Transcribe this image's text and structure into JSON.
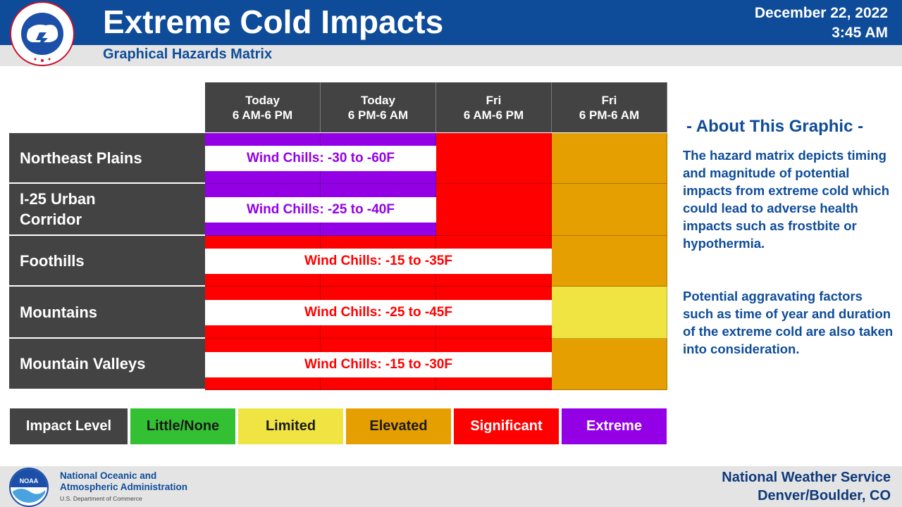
{
  "header": {
    "title": "Extreme Cold Impacts",
    "subtitle": "Graphical Hazards Matrix",
    "date": "December 22, 2022",
    "time": "3:45 AM",
    "nws_seal_text": "NATIONAL WEATHER SERVICE"
  },
  "columns": [
    {
      "line1": "Today",
      "line2": "6 AM-6 PM"
    },
    {
      "line1": "Today",
      "line2": "6 PM-6 AM"
    },
    {
      "line1": "Fri",
      "line2": "6 AM-6 PM"
    },
    {
      "line1": "Fri",
      "line2": "6 PM-6 AM"
    }
  ],
  "rows": [
    {
      "name_line1": "Northeast Plains",
      "name_line2": "",
      "levels": [
        "Extreme",
        "Extreme",
        "Significant",
        "Elevated"
      ],
      "band_text": "Wind Chills: -30 to -60F",
      "band_color": "#9400e6"
    },
    {
      "name_line1": "I-25 Urban",
      "name_line2": "Corridor",
      "levels": [
        "Extreme",
        "Extreme",
        "Significant",
        "Elevated"
      ],
      "band_text": "Wind Chills: -25 to -40F",
      "band_color": "#9400e6"
    },
    {
      "name_line1": "Foothills",
      "name_line2": "",
      "levels": [
        "Significant",
        "Significant",
        "Significant",
        "Elevated"
      ],
      "band_text": "Wind Chills: -15 to -35F",
      "band_color": "#ff0000"
    },
    {
      "name_line1": "Mountains",
      "name_line2": "",
      "levels": [
        "Significant",
        "Significant",
        "Significant",
        "Limited"
      ],
      "band_text": "Wind Chills: -25 to -45F",
      "band_color": "#ff0000"
    },
    {
      "name_line1": "Mountain Valleys",
      "name_line2": "",
      "levels": [
        "Significant",
        "Significant",
        "Significant",
        "Elevated"
      ],
      "band_text": "Wind Chills: -15 to -30F",
      "band_color": "#ff0000"
    }
  ],
  "legend": {
    "label": "Impact Level",
    "items": [
      {
        "name": "Little/None",
        "color": "#33c033",
        "text_color": "#1a1a1a"
      },
      {
        "name": "Limited",
        "color": "#f0e442",
        "text_color": "#1a1a1a"
      },
      {
        "name": "Elevated",
        "color": "#e69f00",
        "text_color": "#1a1a1a"
      },
      {
        "name": "Significant",
        "color": "#ff0000",
        "text_color": "#ffffff"
      },
      {
        "name": "Extreme",
        "color": "#9400e6",
        "text_color": "#ffffff"
      }
    ]
  },
  "level_colors": {
    "Little/None": "#33c033",
    "Limited": "#f0e442",
    "Elevated": "#e69f00",
    "Significant": "#ff0000",
    "Extreme": "#9400e6"
  },
  "about": {
    "title": "- About This Graphic -",
    "para1": "The hazard matrix depicts timing and magnitude of potential impacts from extreme cold which could lead to adverse health impacts such as frostbite or hypothermia.",
    "para2": "Potential aggravating factors such as time of year and duration of the extreme cold are also taken into consideration."
  },
  "footer": {
    "noaa_line1": "National Oceanic and",
    "noaa_line2": "Atmospheric Administration",
    "noaa_dept": "U.S. Department of Commerce",
    "noaa_logo_text": "NOAA",
    "nws_line1": "National Weather Service",
    "nws_line2": "Denver/Boulder, CO"
  }
}
